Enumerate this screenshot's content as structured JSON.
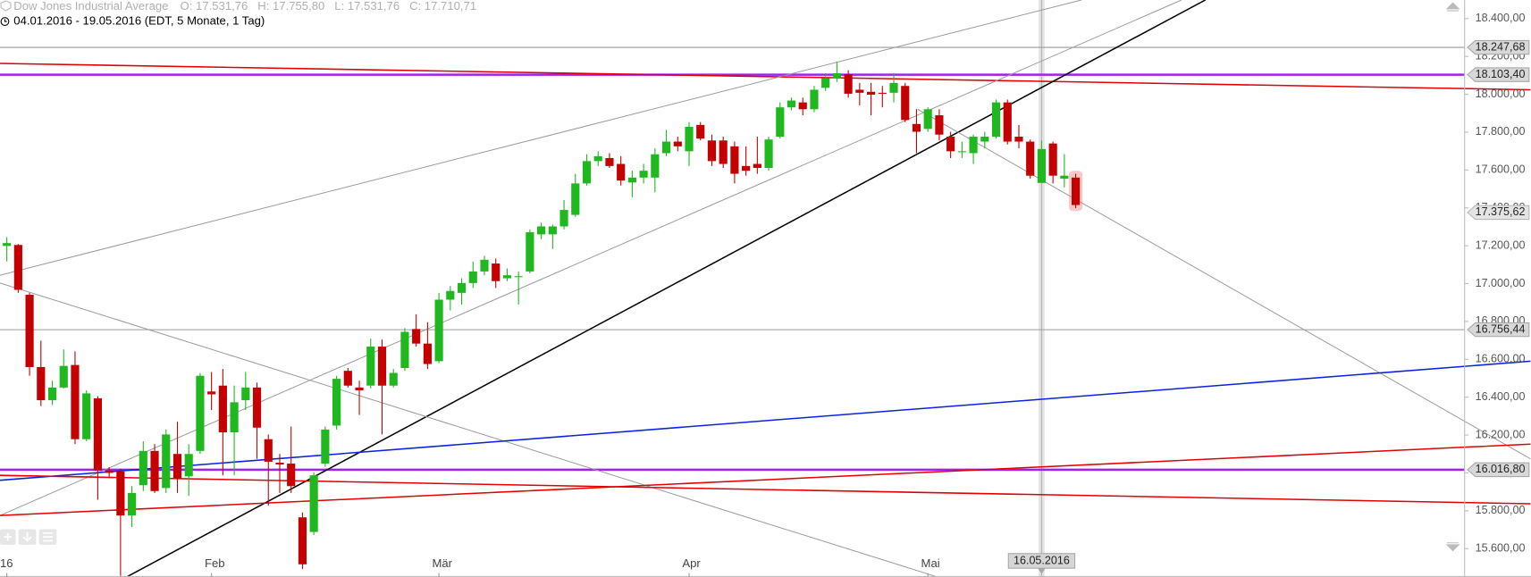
{
  "chart_data": {
    "type": "candlestick",
    "title": "Dow Jones Industrial Average",
    "ohlc_readout": [
      "O: 17.531,76",
      "H: 17.755,80",
      "L: 17.531,76",
      "C: 17.710,71"
    ],
    "subtitle": "04.01.2016 - 19.05.2016 (EDT, 5 Monate, 1 Tag)",
    "up_color": "#1fb81f",
    "down_color": "#c40000",
    "categories": [
      "16",
      null,
      null,
      null,
      null,
      null,
      null,
      null,
      null,
      null,
      null,
      null,
      null,
      null,
      null,
      null,
      null,
      null,
      "Feb",
      null,
      null,
      null,
      null,
      null,
      null,
      null,
      null,
      null,
      null,
      null,
      null,
      null,
      null,
      null,
      null,
      null,
      null,
      null,
      "Mär",
      null,
      null,
      null,
      null,
      null,
      null,
      null,
      null,
      null,
      null,
      null,
      null,
      null,
      null,
      null,
      null,
      null,
      null,
      null,
      null,
      null,
      "Apr",
      null,
      null,
      null,
      null,
      null,
      null,
      null,
      null,
      null,
      null,
      null,
      null,
      null,
      null,
      null,
      null,
      null,
      null,
      null,
      null,
      "Mai",
      null,
      null,
      null,
      null,
      null,
      null,
      null,
      null,
      null,
      null,
      null,
      null,
      null
    ],
    "open": [
      17199,
      17204,
      16941,
      16559,
      16384,
      16451,
      16570,
      16178,
      16394,
      16013,
      16007,
      15775,
      15935,
      16116,
      15920,
      16100,
      15982,
      16116,
      16430,
      16461,
      16214,
      16384,
      16451,
      16178,
      16054,
      16049,
      15765,
      15688,
      16049,
      16250,
      16539,
      16451,
      16461,
      16667,
      16461,
      16554,
      16760,
      16683,
      16590,
      16915,
      16951,
      17003,
      17064,
      17106,
      17028,
      17039,
      17064,
      17260,
      17260,
      17302,
      17363,
      17529,
      17647,
      17663,
      17632,
      17534,
      17560,
      17560,
      17689,
      17750,
      17699,
      17838,
      17756,
      17756,
      17725,
      17621,
      17632,
      17611,
      17776,
      17931,
      17957,
      17921,
      18034,
      18085,
      18106,
      18024,
      18013,
      18008,
      18008,
      18044,
      17843,
      17817,
      17889,
      17776,
      17699,
      17689,
      17750,
      17776,
      17957,
      17776,
      17750,
      17531.76,
      17740,
      17554,
      17560
    ],
    "high": [
      17245,
      17209,
      16951,
      16698,
      16487,
      16652,
      16642,
      16436,
      16405,
      16030,
      16023,
      15930,
      16167,
      16152,
      16229,
      16270,
      16152,
      16528,
      16533,
      16549,
      16461,
      16533,
      16477,
      16203,
      16100,
      16245,
      15791,
      16002,
      16245,
      16513,
      16554,
      16487,
      16709,
      16704,
      16549,
      16765,
      16838,
      16796,
      16951,
      16987,
      17028,
      17116,
      17147,
      17132,
      17080,
      17064,
      17286,
      17322,
      17312,
      17441,
      17580,
      17683,
      17699,
      17689,
      17673,
      17596,
      17632,
      17714,
      17812,
      17776,
      17853,
      17853,
      17787,
      17776,
      17750,
      17725,
      17776,
      17776,
      17957,
      17982,
      17982,
      18044,
      18111,
      18173,
      18127,
      18060,
      18060,
      18044,
      18111,
      18060,
      17921,
      17931,
      17921,
      17802,
      17750,
      17787,
      17802,
      17972,
      17972,
      17838,
      17761,
      17755.8,
      17750,
      17683,
      17580
    ],
    "low": [
      17117,
      16951,
      16513,
      16353,
      16358,
      16446,
      16152,
      16167,
      15858,
      15980,
      15456,
      15714,
      15904,
      15894,
      15894,
      15894,
      15878,
      16100,
      16332,
      15987,
      15987,
      16332,
      16074,
      15827,
      15894,
      15894,
      15492,
      15672,
      16033,
      16229,
      16451,
      16306,
      16446,
      16203,
      16451,
      16539,
      16667,
      16549,
      16580,
      16858,
      16889,
      16977,
      17044,
      16977,
      17013,
      16889,
      17054,
      17235,
      17183,
      17286,
      17353,
      17518,
      17621,
      17611,
      17518,
      17456,
      17529,
      17482,
      17673,
      17699,
      17621,
      17756,
      17621,
      17611,
      17529,
      17570,
      17580,
      17596,
      17766,
      17915,
      17889,
      17905,
      18018,
      18065,
      17982,
      17941,
      17889,
      17931,
      17957,
      17853,
      17689,
      17802,
      17756,
      17663,
      17663,
      17632,
      17714,
      17766,
      17735,
      17714,
      17554,
      17531.76,
      17529,
      17508,
      17399
    ],
    "close": [
      17214,
      16967,
      16559,
      16384,
      16451,
      16565,
      16178,
      16420,
      16013,
      16000,
      15775,
      15894,
      16116,
      15904,
      16203,
      15971,
      16100,
      16513,
      16415,
      16214,
      16373,
      16451,
      16239,
      16059,
      16044,
      15930,
      15517,
      15987,
      16229,
      16497,
      16461,
      16436,
      16667,
      16461,
      16528,
      16745,
      16683,
      16575,
      16915,
      16961,
      17003,
      17064,
      17126,
      17013,
      17044,
      17039,
      17271,
      17302,
      17302,
      17389,
      17529,
      17647,
      17673,
      17621,
      17544,
      17560,
      17596,
      17683,
      17750,
      17725,
      17828,
      17766,
      17647,
      17632,
      17580,
      17596,
      17611,
      17761,
      17931,
      17967,
      17921,
      18024,
      18085,
      18111,
      18003,
      18008,
      17998,
      18003,
      18060,
      17864,
      17802,
      17921,
      17787,
      17699,
      17699,
      17776,
      17776,
      17957,
      17750,
      17750,
      17570,
      17710.71,
      17570,
      17570,
      17415
    ],
    "xlim": [
      -0.6,
      128.2
    ],
    "ylim": [
      15450,
      18498
    ],
    "yticks": [
      {
        "value": 15600,
        "label": "15.600,00"
      },
      {
        "value": 15800,
        "label": "15.800,00"
      },
      {
        "value": 16000,
        "label": "16.000,00"
      },
      {
        "value": 16200,
        "label": "16.200,00"
      },
      {
        "value": 16400,
        "label": "16.400,00"
      },
      {
        "value": 16600,
        "label": "16.600,00"
      },
      {
        "value": 16800,
        "label": "16.800,00"
      },
      {
        "value": 17000,
        "label": "17.000,00"
      },
      {
        "value": 17200,
        "label": "17.200,00"
      },
      {
        "value": 17400,
        "label": "17.400,00"
      },
      {
        "value": 17600,
        "label": "17.600,00"
      },
      {
        "value": 17800,
        "label": "17.800,00"
      },
      {
        "value": 18000,
        "label": "18.000,00"
      },
      {
        "value": 18200,
        "label": "18.200,00"
      },
      {
        "value": 18400,
        "label": "18.400,00"
      }
    ],
    "levels": [
      {
        "value": 18247.68,
        "label": "18.247,68",
        "color": "#9a9a9a"
      },
      {
        "value": 18103.4,
        "label": "18.103,40",
        "color": "#a020f0"
      },
      {
        "value": 16756.44,
        "label": "16.756,44",
        "color": "#9a9a9a"
      },
      {
        "value": 16016.8,
        "label": "16.016,80",
        "color": "#a020f0"
      }
    ],
    "last_price": {
      "value": 17375.62,
      "label": "17.375,62"
    },
    "trendlines": [
      {
        "color": "#e00000",
        "x": [
          -0.6,
          134.0
        ],
        "y": [
          18163,
          18024
        ]
      },
      {
        "color": "#9a9a9a",
        "x": [
          -0.6,
          94.5
        ],
        "y": [
          17044,
          18498
        ]
      },
      {
        "color": "#9a9a9a",
        "x": [
          -0.6,
          103.3
        ],
        "y": [
          15775,
          18498
        ]
      },
      {
        "color": "#000000",
        "x": [
          10.56,
          105.4
        ],
        "y": [
          15451,
          18498
        ]
      },
      {
        "color": "#9a9a9a",
        "x": [
          -0.6,
          81.8
        ],
        "y": [
          17003,
          15451
        ]
      },
      {
        "color": "#9a9a9a",
        "x": [
          80.1,
          134.0
        ],
        "y": [
          17921,
          16074
        ]
      },
      {
        "color": "#0a22e0",
        "x": [
          -0.6,
          134.0
        ],
        "y": [
          15961,
          16590
        ]
      },
      {
        "color": "#e00000",
        "x": [
          -0.6,
          134.0
        ],
        "y": [
          15775,
          16152
        ]
      },
      {
        "color": "#e00000",
        "x": [
          -0.6,
          134.0
        ],
        "y": [
          15987,
          15837
        ]
      }
    ],
    "cursor": {
      "index": 91,
      "label": "16.05.2016"
    }
  }
}
